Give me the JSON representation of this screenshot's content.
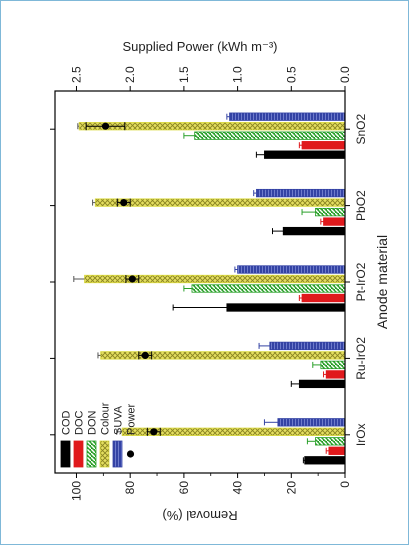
{
  "chart_data": {
    "type": "bar",
    "categories": [
      "IrOx",
      "Ru-IrO2",
      "Pt-IrO2",
      "PbO2",
      "SnO2"
    ],
    "series": [
      {
        "name": "COD",
        "values": [
          15,
          17,
          44,
          23,
          30
        ],
        "errors": [
          0.5,
          3,
          20,
          4,
          3
        ],
        "color": "#000000"
      },
      {
        "name": "DOC",
        "values": [
          6,
          7,
          16,
          8,
          16
        ],
        "errors": [
          1,
          1,
          1,
          1,
          1
        ],
        "color": "#e0191c"
      },
      {
        "name": "DON",
        "values": [
          11,
          9,
          57,
          11,
          56
        ],
        "errors": [
          3,
          3,
          3,
          5,
          4
        ],
        "color": "#2aa02a"
      },
      {
        "name": "Colour",
        "values": [
          83,
          91,
          97,
          93,
          99
        ],
        "errors": [
          2,
          1,
          4,
          1,
          0.5
        ],
        "color": "#d9d93c"
      },
      {
        "name": "SUVA",
        "values": [
          25,
          28,
          40,
          33,
          43
        ],
        "errors": [
          5,
          4,
          1,
          1,
          1
        ],
        "color": "#3443a4"
      }
    ],
    "power": {
      "name": "Power",
      "values": [
        1.78,
        1.86,
        1.98,
        2.06,
        2.23
      ],
      "errors": [
        0.06,
        0.06,
        0.06,
        0.06,
        0.18
      ]
    },
    "title": "",
    "xlabel": "Anode material",
    "ylabel": "Removal (%)",
    "ylabel_right": "Supplied Power (kWh m⁻³)",
    "ylim": [
      0,
      108
    ],
    "ylim_right": [
      0,
      2.7
    ],
    "yticks": [
      0,
      20,
      40,
      60,
      80,
      100
    ],
    "yticks_right": [
      "0.0",
      "0.5",
      "1.0",
      "1.5",
      "2.0",
      "2.5"
    ],
    "legend": [
      "COD",
      "DOC",
      "DON",
      "Colour",
      "SUVA",
      "Power"
    ],
    "legend_position": "top-left",
    "grid": false
  }
}
